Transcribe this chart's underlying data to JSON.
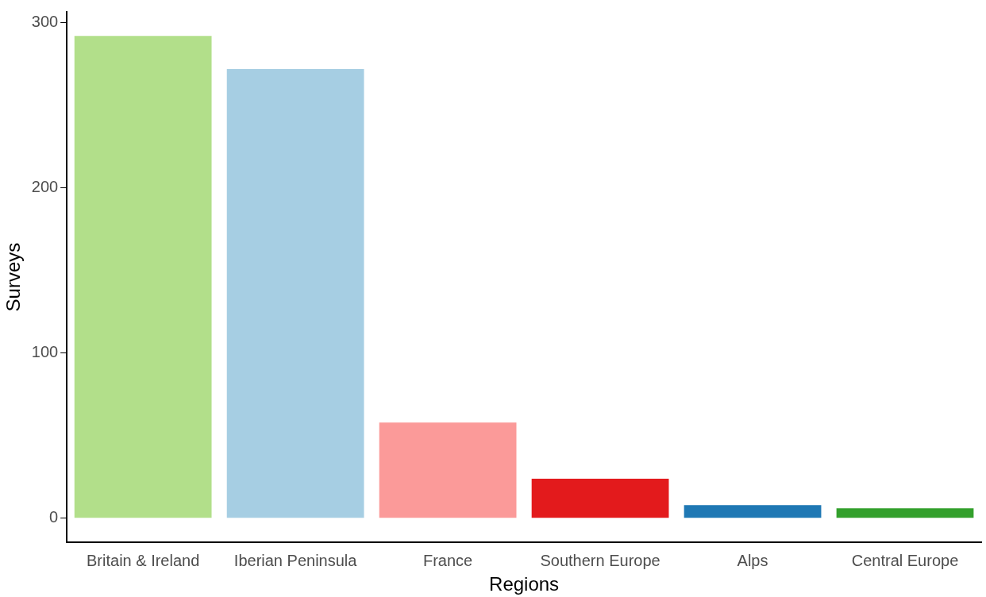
{
  "chart_data": {
    "type": "bar",
    "xlabel": "Regions",
    "ylabel": "Surveys",
    "categories": [
      "Britain & Ireland",
      "Iberian Peninsula",
      "France",
      "Southern Europe",
      "Alps",
      "Central Europe"
    ],
    "values": [
      292,
      272,
      58,
      24,
      8,
      6
    ],
    "colors": [
      "#b2df8a",
      "#a6cee3",
      "#fb9a99",
      "#e31a1c",
      "#1f78b4",
      "#33a02c"
    ],
    "ylim": [
      -14.6,
      306.6
    ],
    "yticks": [
      0,
      100,
      200,
      300
    ],
    "grid": false,
    "legend": false
  }
}
